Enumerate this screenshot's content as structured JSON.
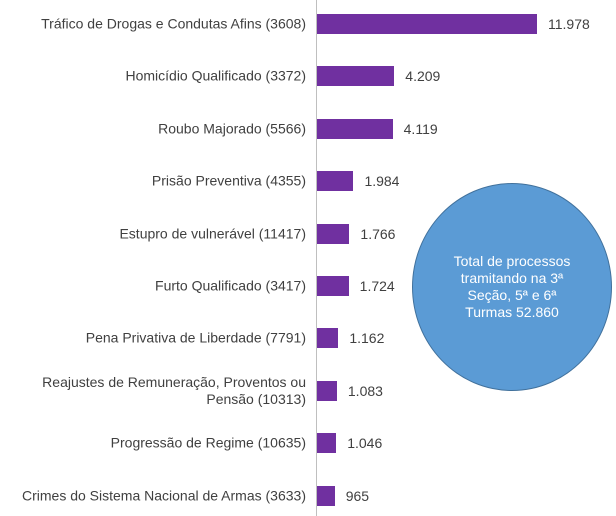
{
  "chart_data": {
    "type": "barh",
    "categories": [
      "Tráfico de Drogas e Condutas Afins (3608)",
      "Homicídio Qualificado (3372)",
      "Roubo Majorado (5566)",
      "Prisão Preventiva (4355)",
      "Estupro de vulnerável (11417)",
      "Furto Qualificado (3417)",
      "Pena Privativa de Liberdade (7791)",
      "Reajustes de Remuneração, Proventos ou Pensão (10313)",
      "Progressão de Regime (10635)",
      "Crimes do Sistema Nacional de Armas (3633)"
    ],
    "values": [
      11978,
      4209,
      4119,
      1984,
      1766,
      1724,
      1162,
      1083,
      1046,
      965
    ],
    "value_labels": [
      "11.978",
      "4.209",
      "4.119",
      "1.984",
      "1.766",
      "1.724",
      "1.162",
      "1.083",
      "1.046",
      "965"
    ],
    "color": "#7030a0",
    "annotation": "Total de processos tramitando na 3ª Seção, 5ª e 6ª Turmas 52.860"
  }
}
